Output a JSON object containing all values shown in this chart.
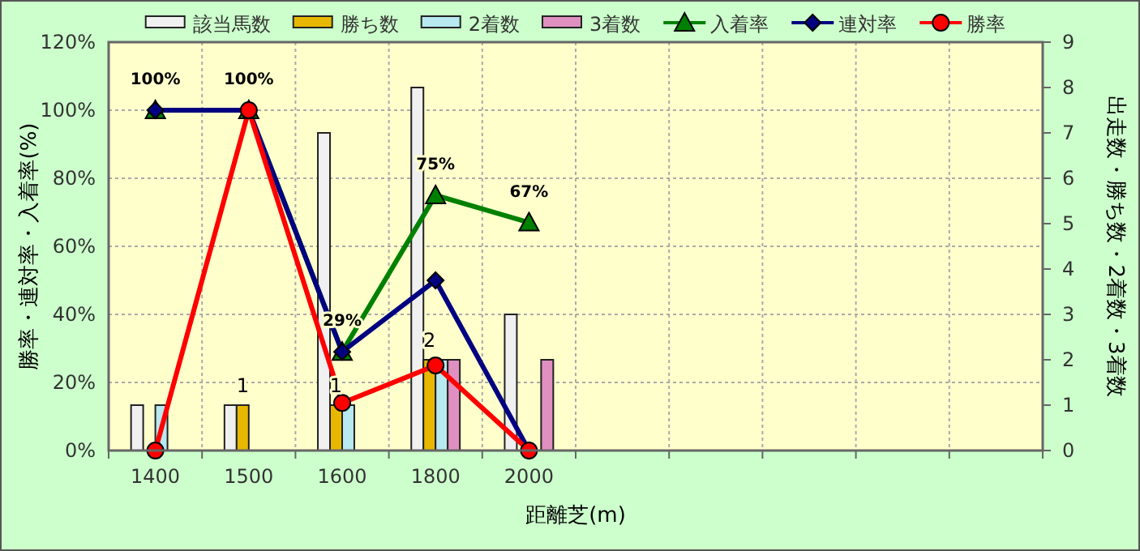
{
  "chart_data": {
    "type": "bar",
    "xlabel": "距離芝(m)",
    "ylabel": "勝率・連対率・入着率(%)",
    "y2label": "出走数・勝ち数・2着数・3着数",
    "categories": [
      "1400",
      "1500",
      "1600",
      "1800",
      "2000",
      null,
      null,
      null,
      null,
      null
    ],
    "ylim": [
      0,
      120
    ],
    "yticks": [
      {
        "value": 0,
        "label": "0%"
      },
      {
        "value": 20,
        "label": "20%"
      },
      {
        "value": 40,
        "label": "40%"
      },
      {
        "value": 60,
        "label": "60%"
      },
      {
        "value": 80,
        "label": "80%"
      },
      {
        "value": 100,
        "label": "100%"
      },
      {
        "value": 120,
        "label": "120%"
      }
    ],
    "y2lim": [
      0,
      9
    ],
    "y2ticks": [
      0,
      1,
      2,
      3,
      4,
      5,
      6,
      7,
      8,
      9
    ],
    "grid": true,
    "legend": "top",
    "series": [
      {
        "name": "該当馬数",
        "axis": "y2",
        "color": "#f0f0f0",
        "values": [
          1,
          1,
          7,
          8,
          3,
          null,
          null,
          null,
          null,
          null
        ]
      },
      {
        "name": "勝ち数",
        "axis": "y2",
        "color": "#e8b800",
        "values": [
          0,
          1,
          1,
          2,
          0,
          null,
          null,
          null,
          null,
          null
        ],
        "value_labels": [
          null,
          "1",
          "1",
          "2",
          null,
          null,
          null,
          null,
          null,
          null
        ]
      },
      {
        "name": "2着数",
        "axis": "y2",
        "color": "#b8e8f0",
        "values": [
          1,
          0,
          1,
          2,
          0,
          null,
          null,
          null,
          null,
          null
        ]
      },
      {
        "name": "3着数",
        "axis": "y2",
        "color": "#e090c0",
        "values": [
          0,
          0,
          0,
          2,
          2,
          null,
          null,
          null,
          null,
          null
        ]
      },
      {
        "name": "入着率",
        "type": "line",
        "color": "#008000",
        "marker": "triangle",
        "values": [
          100,
          100,
          29,
          75,
          67,
          null,
          null,
          null,
          null,
          null
        ],
        "value_labels": [
          "100%",
          "100%",
          "29%",
          "75%",
          "67%",
          null,
          null,
          null,
          null,
          null
        ]
      },
      {
        "name": "連対率",
        "type": "line",
        "color": "#000080",
        "marker": "diamond",
        "values": [
          100,
          100,
          29,
          50,
          0,
          null,
          null,
          null,
          null,
          null
        ]
      },
      {
        "name": "勝率",
        "type": "line",
        "color": "#ff0000",
        "marker": "circle",
        "values": [
          0,
          100,
          14,
          25,
          0,
          null,
          null,
          null,
          null,
          null
        ]
      }
    ]
  }
}
